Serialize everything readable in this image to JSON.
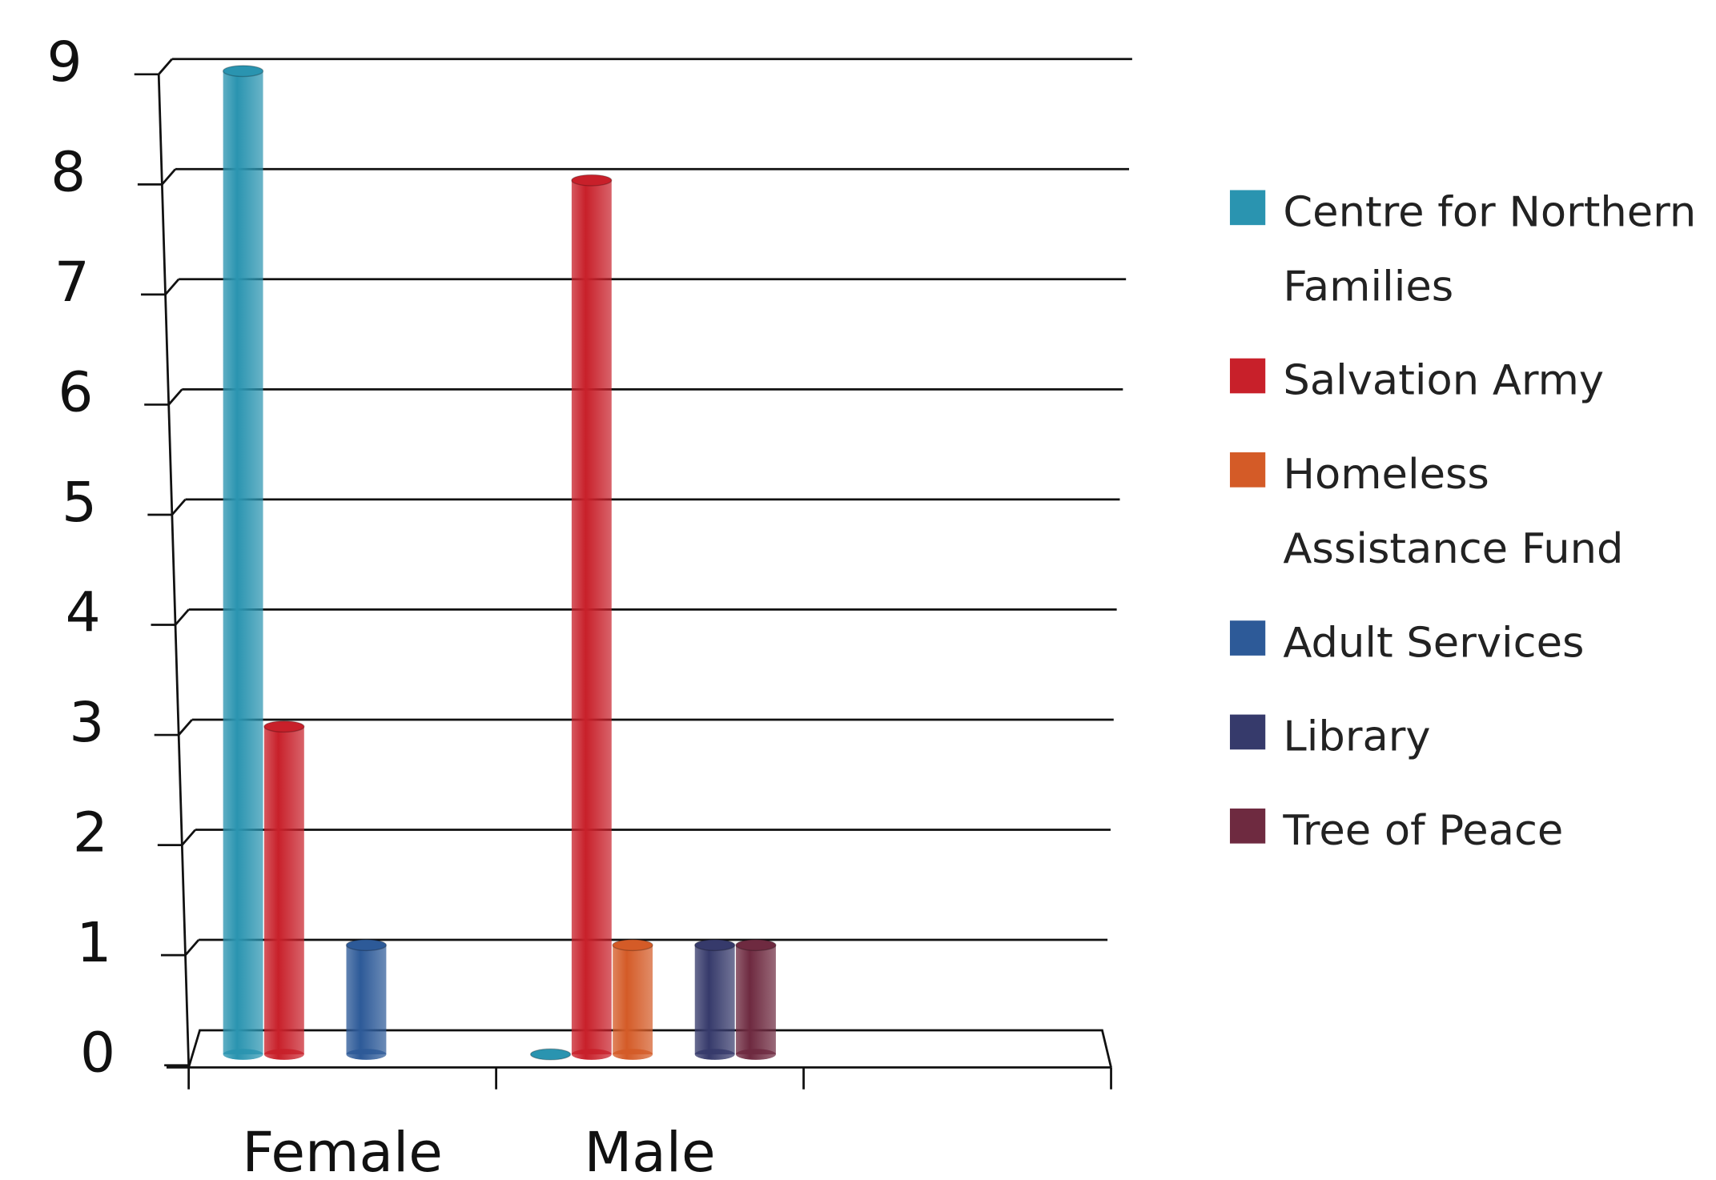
{
  "chart_data": {
    "type": "bar",
    "categories": [
      "Female",
      "Male",
      null
    ],
    "series": [
      {
        "name": "Centre for Northern Families",
        "color": "#2a94b0",
        "values": [
          9,
          0,
          null
        ]
      },
      {
        "name": "Salvation Army",
        "color": "#c8202a",
        "values": [
          3,
          8,
          null
        ]
      },
      {
        "name": "Homeless Assistance Fund",
        "color": "#d45b27",
        "values": [
          null,
          1,
          null
        ]
      },
      {
        "name": "Adult Services",
        "color": "#2d5a98",
        "values": [
          1,
          null,
          null
        ]
      },
      {
        "name": "Library",
        "color": "#363a6b",
        "values": [
          null,
          1,
          null
        ]
      },
      {
        "name": "Tree of Peace",
        "color": "#6e2a40",
        "values": [
          null,
          1,
          null
        ]
      }
    ],
    "ylim": [
      0,
      9
    ],
    "yticks": [
      0,
      1,
      2,
      3,
      4,
      5,
      6,
      7,
      8,
      9
    ],
    "grid": true,
    "legend": "right"
  }
}
